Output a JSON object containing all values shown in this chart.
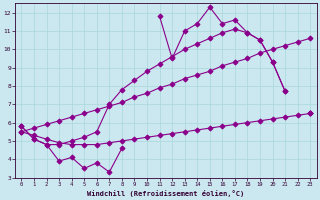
{
  "xlabel": "Windchill (Refroidissement éolien,°C)",
  "bg_color": "#cbe8f0",
  "line_color": "#8b008b",
  "grid_color": "#a8d8d8",
  "x_values": [
    0,
    1,
    2,
    3,
    4,
    5,
    6,
    7,
    8,
    9,
    10,
    11,
    12,
    13,
    14,
    15,
    16,
    17,
    18,
    19,
    20,
    21,
    22,
    23
  ],
  "line_main": [
    5.8,
    5.1,
    4.8,
    3.9,
    4.1,
    3.5,
    3.8,
    3.3,
    4.6,
    null,
    null,
    11.8,
    9.5,
    11.0,
    11.4,
    12.3,
    11.4,
    11.6,
    10.9,
    10.5,
    9.3,
    7.7,
    null,
    6.5
  ],
  "line_smooth": [
    5.8,
    5.1,
    4.8,
    4.8,
    5.0,
    5.2,
    5.5,
    7.0,
    7.8,
    8.3,
    8.8,
    9.2,
    9.6,
    10.0,
    10.3,
    10.6,
    10.9,
    11.1,
    10.9,
    10.5,
    9.3,
    7.7,
    null,
    6.5
  ],
  "line_reg_low": [
    5.5,
    5.3,
    5.1,
    4.9,
    4.8,
    4.8,
    4.8,
    4.9,
    5.0,
    5.1,
    5.2,
    5.3,
    5.4,
    5.5,
    5.6,
    5.7,
    5.8,
    5.9,
    6.0,
    6.1,
    6.2,
    6.3,
    6.4,
    6.5
  ],
  "line_reg_high": [
    5.5,
    5.7,
    5.9,
    6.1,
    6.3,
    6.5,
    6.7,
    6.9,
    7.1,
    7.4,
    7.6,
    7.9,
    8.1,
    8.4,
    8.6,
    8.8,
    9.1,
    9.3,
    9.5,
    9.8,
    10.0,
    10.2,
    10.4,
    10.6
  ],
  "xlim": [
    -0.5,
    23.5
  ],
  "ylim": [
    3.0,
    12.5
  ],
  "yticks": [
    3,
    4,
    5,
    6,
    7,
    8,
    9,
    10,
    11,
    12
  ],
  "xticks": [
    0,
    1,
    2,
    3,
    4,
    5,
    6,
    7,
    8,
    9,
    10,
    11,
    12,
    13,
    14,
    15,
    16,
    17,
    18,
    19,
    20,
    21,
    22,
    23
  ]
}
